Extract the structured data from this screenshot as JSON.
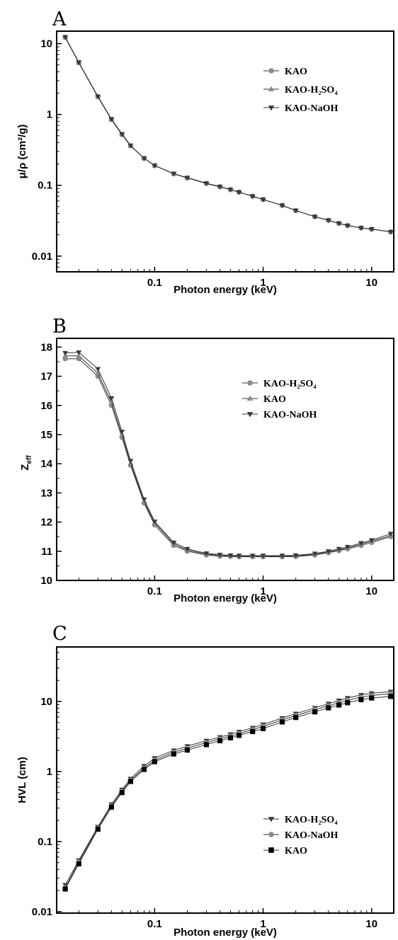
{
  "chart_data": [
    {
      "type": "line",
      "panel": "A",
      "xlabel": "Photon energy (keV)",
      "ylabel": "μ/ρ (cm²/g)",
      "xscale": "log",
      "yscale": "log",
      "xlim": [
        0.0125,
        16
      ],
      "ylim": [
        0.006,
        15
      ],
      "xticks": [
        {
          "v": 0.1,
          "label": "0.1"
        },
        {
          "v": 1,
          "label": "1"
        },
        {
          "v": 10,
          "label": "10"
        }
      ],
      "yticks": [
        {
          "v": 0.01,
          "label": "0.01"
        },
        {
          "v": 0.1,
          "label": "0.1"
        },
        {
          "v": 1,
          "label": "1"
        },
        {
          "v": 10,
          "label": "10"
        }
      ],
      "legend_position": "top-right",
      "x": [
        0.015,
        0.02,
        0.03,
        0.04,
        0.05,
        0.06,
        0.08,
        0.1,
        0.15,
        0.2,
        0.3,
        0.4,
        0.5,
        0.6,
        0.8,
        1,
        1.5,
        2,
        3,
        4,
        5,
        6,
        8,
        10,
        15
      ],
      "series": [
        {
          "name": "KAO",
          "marker": "circle",
          "color": "#8a8a8a",
          "values": [
            12.3,
            5.4,
            1.78,
            0.85,
            0.52,
            0.36,
            0.24,
            0.19,
            0.145,
            0.127,
            0.106,
            0.095,
            0.087,
            0.08,
            0.07,
            0.063,
            0.052,
            0.044,
            0.036,
            0.032,
            0.029,
            0.027,
            0.025,
            0.024,
            0.022
          ]
        },
        {
          "name": "KAO-H₂SO₄",
          "marker": "triangle-up",
          "color": "#8a8a8a",
          "values": [
            12.2,
            5.35,
            1.77,
            0.84,
            0.52,
            0.36,
            0.24,
            0.19,
            0.145,
            0.127,
            0.106,
            0.095,
            0.087,
            0.08,
            0.07,
            0.063,
            0.052,
            0.044,
            0.036,
            0.032,
            0.029,
            0.027,
            0.025,
            0.024,
            0.022
          ]
        },
        {
          "name": "KAO-NaOH",
          "marker": "triangle-down",
          "color": "#3a3a3a",
          "values": [
            12.4,
            5.45,
            1.8,
            0.86,
            0.53,
            0.365,
            0.24,
            0.19,
            0.146,
            0.128,
            0.107,
            0.096,
            0.087,
            0.08,
            0.07,
            0.063,
            0.052,
            0.044,
            0.036,
            0.032,
            0.029,
            0.027,
            0.025,
            0.024,
            0.022
          ]
        }
      ]
    },
    {
      "type": "line",
      "panel": "B",
      "xlabel": "Photon energy (keV)",
      "ylabel": "Zeff",
      "xscale": "log",
      "yscale": "linear",
      "xlim": [
        0.0125,
        16
      ],
      "ylim": [
        10,
        18.3
      ],
      "xticks": [
        {
          "v": 0.1,
          "label": "0.1"
        },
        {
          "v": 1,
          "label": "1"
        },
        {
          "v": 10,
          "label": "10"
        }
      ],
      "yticks": [
        {
          "v": 10,
          "label": "10"
        },
        {
          "v": 11,
          "label": "11"
        },
        {
          "v": 12,
          "label": "12"
        },
        {
          "v": 13,
          "label": "13"
        },
        {
          "v": 14,
          "label": "14"
        },
        {
          "v": 15,
          "label": "15"
        },
        {
          "v": 16,
          "label": "16"
        },
        {
          "v": 17,
          "label": "17"
        },
        {
          "v": 18,
          "label": "18"
        }
      ],
      "legend_position": "top-right",
      "x": [
        0.015,
        0.02,
        0.03,
        0.04,
        0.05,
        0.06,
        0.08,
        0.1,
        0.15,
        0.2,
        0.3,
        0.4,
        0.5,
        0.6,
        0.8,
        1,
        1.5,
        2,
        3,
        4,
        5,
        6,
        8,
        10,
        15
      ],
      "series": [
        {
          "name": "KAO-H₂SO₄",
          "marker": "circle",
          "color": "#8a8a8a",
          "values": [
            17.6,
            17.6,
            17.0,
            16.0,
            14.9,
            13.95,
            12.65,
            11.9,
            11.2,
            11.0,
            10.87,
            10.83,
            10.82,
            10.81,
            10.81,
            10.81,
            10.81,
            10.82,
            10.87,
            10.95,
            11.02,
            11.08,
            11.2,
            11.3,
            11.5
          ]
        },
        {
          "name": "KAO",
          "marker": "triangle-up",
          "color": "#8a8a8a",
          "values": [
            17.7,
            17.7,
            17.1,
            16.1,
            15.0,
            14.02,
            12.7,
            11.97,
            11.25,
            11.04,
            10.9,
            10.86,
            10.84,
            10.83,
            10.83,
            10.83,
            10.83,
            10.84,
            10.9,
            10.98,
            11.05,
            11.11,
            11.24,
            11.34,
            11.54
          ]
        },
        {
          "name": "KAO-NaOH",
          "marker": "triangle-down",
          "color": "#3a3a3a",
          "values": [
            17.8,
            17.82,
            17.25,
            16.25,
            15.1,
            14.1,
            12.78,
            12.02,
            11.3,
            11.08,
            10.93,
            10.88,
            10.86,
            10.85,
            10.85,
            10.85,
            10.85,
            10.86,
            10.92,
            11.0,
            11.08,
            11.15,
            11.28,
            11.38,
            11.6
          ]
        }
      ]
    },
    {
      "type": "line",
      "panel": "C",
      "xlabel": "Photon energy (keV)",
      "ylabel": "HVL (cm)",
      "xscale": "log",
      "yscale": "log",
      "xlim": [
        0.0125,
        16
      ],
      "ylim": [
        0.0095,
        60
      ],
      "xticks": [
        {
          "v": 0.1,
          "label": "0.1"
        },
        {
          "v": 1,
          "label": "1"
        },
        {
          "v": 10,
          "label": "10"
        }
      ],
      "yticks": [
        {
          "v": 0.01,
          "label": "0.01"
        },
        {
          "v": 0.1,
          "label": "0.1"
        },
        {
          "v": 1,
          "label": "1"
        },
        {
          "v": 10,
          "label": "10"
        }
      ],
      "legend_position": "center-right",
      "x": [
        0.015,
        0.02,
        0.03,
        0.04,
        0.05,
        0.06,
        0.08,
        0.1,
        0.15,
        0.2,
        0.3,
        0.4,
        0.5,
        0.6,
        0.8,
        1,
        1.5,
        2,
        3,
        4,
        5,
        6,
        8,
        10,
        15
      ],
      "series": [
        {
          "name": "KAO-H₂SO₄",
          "marker": "triangle-down",
          "color": "#3a3a3a",
          "values": [
            0.024,
            0.054,
            0.162,
            0.34,
            0.55,
            0.79,
            1.2,
            1.55,
            2.0,
            2.3,
            2.75,
            3.1,
            3.4,
            3.7,
            4.2,
            4.7,
            5.8,
            6.7,
            8.1,
            9.3,
            10.3,
            11.2,
            12.4,
            13.1,
            13.8
          ]
        },
        {
          "name": "KAO-NaOH",
          "marker": "circle",
          "color": "#8a8a8a",
          "values": [
            0.022,
            0.051,
            0.155,
            0.32,
            0.52,
            0.75,
            1.12,
            1.45,
            1.88,
            2.15,
            2.58,
            2.92,
            3.2,
            3.48,
            3.95,
            4.4,
            5.45,
            6.3,
            7.6,
            8.7,
            9.6,
            10.4,
            11.5,
            12.2,
            12.9
          ]
        },
        {
          "name": "KAO",
          "marker": "square",
          "color": "#000000",
          "values": [
            0.021,
            0.048,
            0.15,
            0.31,
            0.5,
            0.72,
            1.07,
            1.38,
            1.78,
            2.02,
            2.42,
            2.75,
            3.02,
            3.28,
            3.72,
            4.1,
            5.1,
            5.9,
            7.1,
            8.1,
            8.9,
            9.6,
            10.6,
            11.2,
            11.8
          ]
        }
      ]
    }
  ]
}
